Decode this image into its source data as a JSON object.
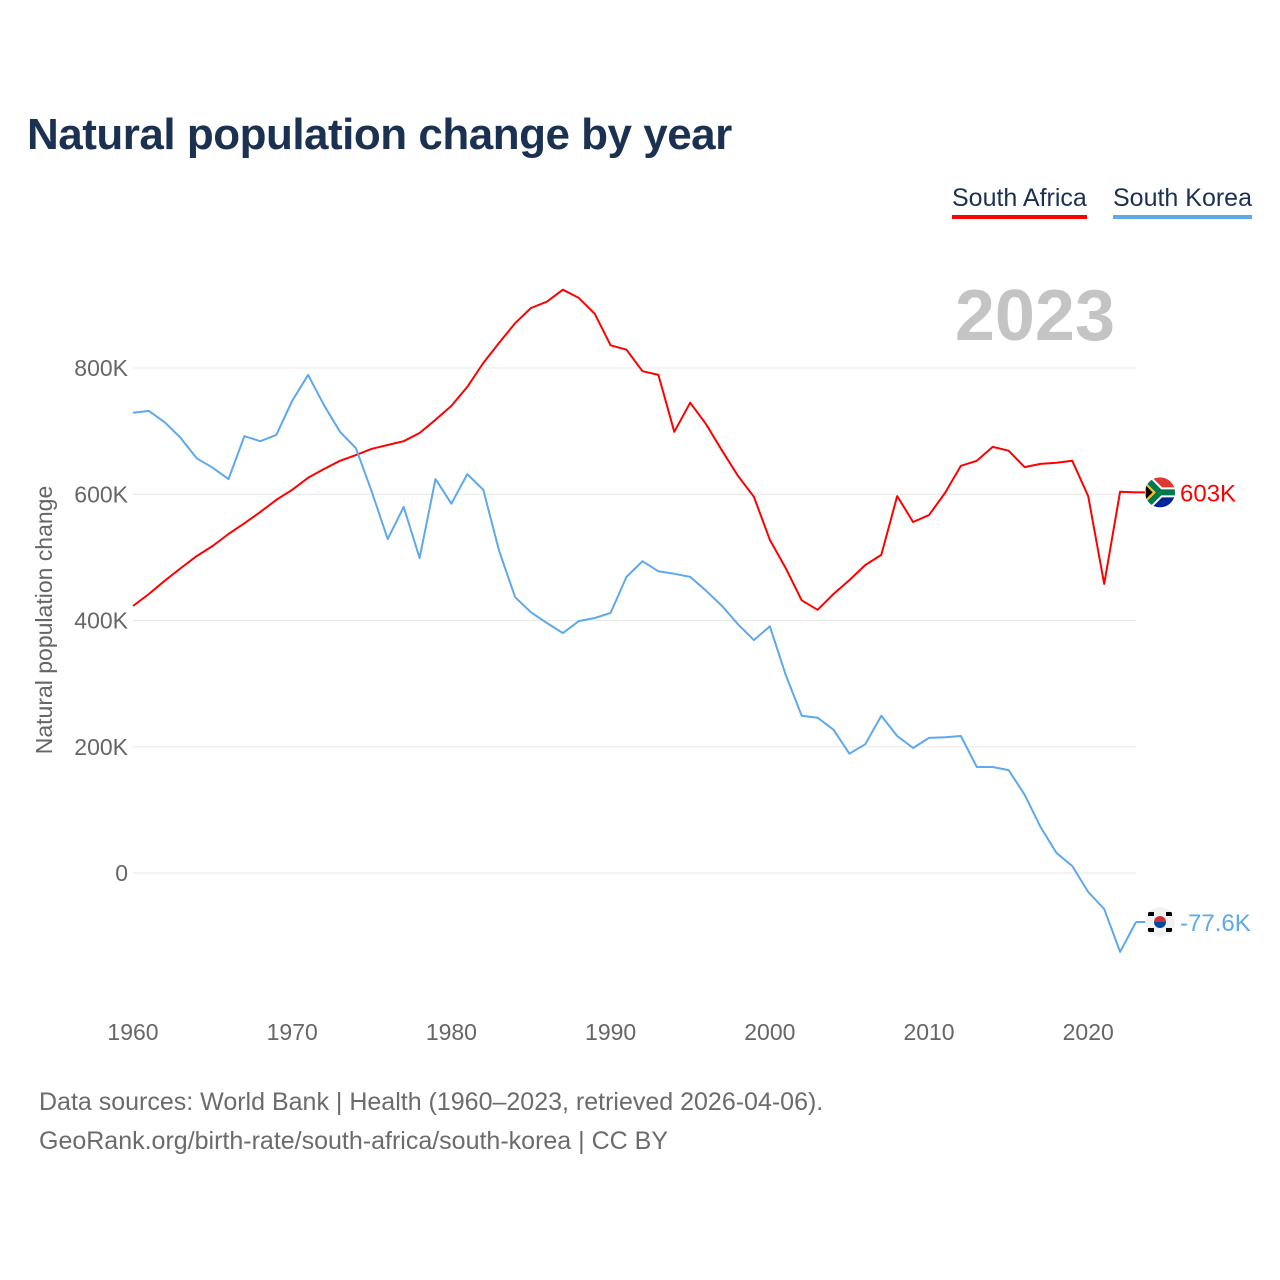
{
  "chart_data": {
    "type": "line",
    "title": "Natural population change by year",
    "ylabel": "Natural population change",
    "xlabel": "",
    "year_label": "2023",
    "xlim": [
      1960,
      2023
    ],
    "ylim": [
      -200000,
      900000
    ],
    "grid": true,
    "legend_placement": "top-right",
    "x_ticks": [
      1960,
      1970,
      1980,
      1990,
      2000,
      2010,
      2020
    ],
    "y_ticks": [
      0,
      200000,
      400000,
      600000,
      800000
    ],
    "y_tick_labels": [
      "0",
      "200K",
      "400K",
      "600K",
      "800K"
    ],
    "x": [
      1960,
      1961,
      1962,
      1963,
      1964,
      1965,
      1966,
      1967,
      1968,
      1969,
      1970,
      1971,
      1972,
      1973,
      1974,
      1975,
      1976,
      1977,
      1978,
      1979,
      1980,
      1981,
      1982,
      1983,
      1984,
      1985,
      1986,
      1987,
      1988,
      1989,
      1990,
      1991,
      1992,
      1993,
      1994,
      1995,
      1996,
      1997,
      1998,
      1999,
      2000,
      2001,
      2002,
      2003,
      2004,
      2005,
      2006,
      2007,
      2008,
      2009,
      2010,
      2011,
      2012,
      2013,
      2014,
      2015,
      2016,
      2017,
      2018,
      2019,
      2020,
      2021,
      2022,
      2023
    ],
    "series": [
      {
        "name": "South Africa",
        "color": "#ff0000",
        "end_label": "603K",
        "flag": "south-africa",
        "values": [
          423000,
          442000,
          463000,
          483000,
          502000,
          518000,
          537000,
          554000,
          572000,
          591000,
          607000,
          626000,
          640000,
          653000,
          662000,
          672000,
          678000,
          684000,
          697000,
          718000,
          740000,
          770000,
          808000,
          840000,
          871000,
          895000,
          905000,
          924000,
          911000,
          886000,
          836000,
          829000,
          795000,
          789000,
          699000,
          745000,
          711000,
          669000,
          629000,
          596000,
          528000,
          483000,
          432000,
          417000,
          442000,
          464000,
          488000,
          504000,
          597000,
          556000,
          567000,
          602000,
          645000,
          653000,
          675000,
          669000,
          643000,
          648000,
          650000,
          653000,
          597000,
          458000,
          604000,
          603000
        ]
      },
      {
        "name": "South Korea",
        "color": "#5ea8ec",
        "end_label": "-77.6K",
        "flag": "south-korea",
        "values": [
          729000,
          732000,
          714000,
          689000,
          657000,
          642000,
          624000,
          692000,
          684000,
          694000,
          748000,
          789000,
          741000,
          699000,
          673000,
          604000,
          529000,
          580000,
          499000,
          624000,
          585000,
          632000,
          607000,
          510000,
          437000,
          413000,
          396000,
          380000,
          399000,
          404000,
          412000,
          469000,
          494000,
          478000,
          474000,
          469000,
          447000,
          423000,
          394000,
          369000,
          391000,
          314000,
          249000,
          246000,
          227000,
          189000,
          204000,
          249000,
          217000,
          198000,
          214000,
          215000,
          217000,
          168000,
          168000,
          163000,
          124000,
          73000,
          32000,
          11000,
          -30000,
          -57000,
          -125000,
          -77600
        ]
      }
    ]
  },
  "footer": {
    "sources": "Data sources: World Bank | Health (1960–2023, retrieved 2026-04-06).",
    "credit": "GeoRank.org/birth-rate/south-africa/south-korea | CC BY"
  }
}
